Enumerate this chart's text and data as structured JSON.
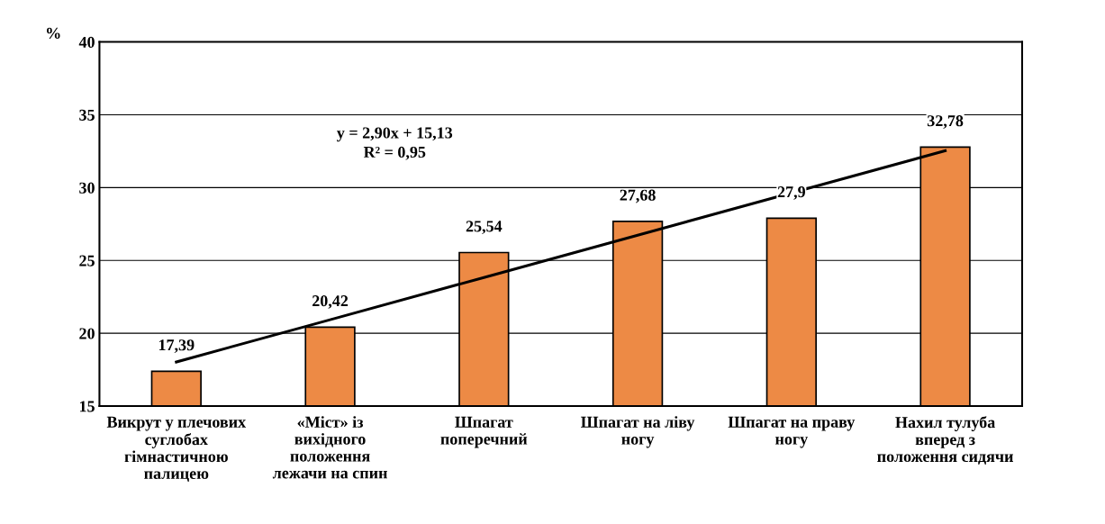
{
  "chart_data": {
    "type": "bar",
    "ylabel": "%",
    "categories": [
      "Викрут у плечових\nсуглобах\nгімнастичною\nпалицею",
      "«Міст» із\nвихідного\nположення\nлежачи на спин",
      "Шпагат\nпоперечний",
      "Шпагат на ліву\nногу",
      "Шпагат на праву\nногу",
      "Нахил тулуба\nвперед з\nположення сидячи"
    ],
    "series": [
      {
        "color": "#ed8a45",
        "values": [
          17.39,
          20.42,
          25.54,
          27.68,
          27.9,
          32.78
        ],
        "value_labels": [
          "17,39",
          "20,42",
          "25,54",
          "27,68",
          "27,9",
          "32,78"
        ]
      },
      {
        "type": "line",
        "color": "#000000",
        "values": [
          18.03,
          20.93,
          23.83,
          26.73,
          29.63,
          32.53
        ]
      }
    ],
    "ylim": [
      15,
      40
    ],
    "yticks": [
      15,
      20,
      25,
      30,
      35,
      40
    ],
    "grid": "y",
    "annotations": [
      "y = 2,90x + 15,13\nR² = 0,95"
    ]
  }
}
